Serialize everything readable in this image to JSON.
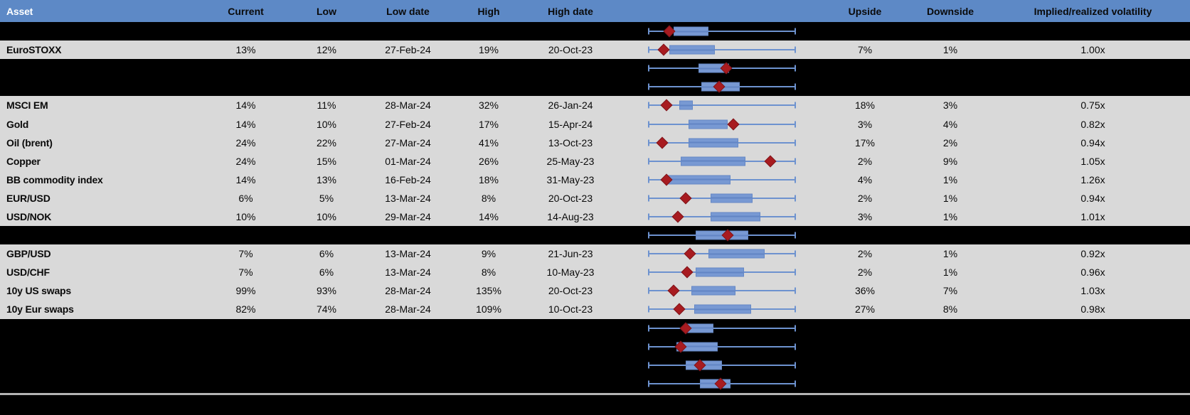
{
  "table": {
    "columns": [
      "Asset",
      "Current",
      "Low",
      "Low date",
      "High",
      "High date",
      "",
      "Upside",
      "Downside",
      "Implied/realized volatility"
    ],
    "rows": [
      {
        "hidden": true,
        "asset": "",
        "current": "",
        "low": "",
        "low_date": "",
        "high": "",
        "high_date": "",
        "upside": "",
        "downside": "",
        "impl_real_vol": ""
      },
      {
        "hidden": false,
        "asset": "EuroSTOXX",
        "current": "13%",
        "low": "12%",
        "low_date": "27-Feb-24",
        "high": "19%",
        "high_date": "20-Oct-23",
        "upside": "7%",
        "downside": "1%",
        "impl_real_vol": "1.00x"
      },
      {
        "hidden": true,
        "asset": "",
        "current": "",
        "low": "",
        "low_date": "",
        "high": "",
        "high_date": "",
        "upside": "",
        "downside": "",
        "impl_real_vol": ""
      },
      {
        "hidden": true,
        "asset": "",
        "current": "",
        "low": "",
        "low_date": "",
        "high": "",
        "high_date": "",
        "upside": "",
        "downside": "",
        "impl_real_vol": ""
      },
      {
        "hidden": false,
        "asset": "MSCI EM",
        "current": "14%",
        "low": "11%",
        "low_date": "28-Mar-24",
        "high": "32%",
        "high_date": "26-Jan-24",
        "upside": "18%",
        "downside": "3%",
        "impl_real_vol": "0.75x"
      },
      {
        "hidden": false,
        "asset": "Gold",
        "current": "14%",
        "low": "10%",
        "low_date": "27-Feb-24",
        "high": "17%",
        "high_date": "15-Apr-24",
        "upside": "3%",
        "downside": "4%",
        "impl_real_vol": "0.82x"
      },
      {
        "hidden": false,
        "asset": "Oil (brent)",
        "current": "24%",
        "low": "22%",
        "low_date": "27-Mar-24",
        "high": "41%",
        "high_date": "13-Oct-23",
        "upside": "17%",
        "downside": "2%",
        "impl_real_vol": "0.94x"
      },
      {
        "hidden": false,
        "asset": "Copper",
        "current": "24%",
        "low": "15%",
        "low_date": "01-Mar-24",
        "high": "26%",
        "high_date": "25-May-23",
        "upside": "2%",
        "downside": "9%",
        "impl_real_vol": "1.05x"
      },
      {
        "hidden": false,
        "asset": "BB commodity index",
        "current": "14%",
        "low": "13%",
        "low_date": "16-Feb-24",
        "high": "18%",
        "high_date": "31-May-23",
        "upside": "4%",
        "downside": "1%",
        "impl_real_vol": "1.26x"
      },
      {
        "hidden": false,
        "asset": "EUR/USD",
        "current": "6%",
        "low": "5%",
        "low_date": "13-Mar-24",
        "high": "8%",
        "high_date": "20-Oct-23",
        "upside": "2%",
        "downside": "1%",
        "impl_real_vol": "0.94x"
      },
      {
        "hidden": false,
        "asset": "USD/NOK",
        "current": "10%",
        "low": "10%",
        "low_date": "29-Mar-24",
        "high": "14%",
        "high_date": "14-Aug-23",
        "upside": "3%",
        "downside": "1%",
        "impl_real_vol": "1.01x"
      },
      {
        "hidden": true,
        "asset": "",
        "current": "",
        "low": "",
        "low_date": "",
        "high": "",
        "high_date": "",
        "upside": "",
        "downside": "",
        "impl_real_vol": ""
      },
      {
        "hidden": false,
        "asset": "GBP/USD",
        "current": "7%",
        "low": "6%",
        "low_date": "13-Mar-24",
        "high": "9%",
        "high_date": "21-Jun-23",
        "upside": "2%",
        "downside": "1%",
        "impl_real_vol": "0.92x"
      },
      {
        "hidden": false,
        "asset": "USD/CHF",
        "current": "7%",
        "low": "6%",
        "low_date": "13-Mar-24",
        "high": "8%",
        "high_date": "10-May-23",
        "upside": "2%",
        "downside": "1%",
        "impl_real_vol": "0.96x"
      },
      {
        "hidden": false,
        "asset": "10y US swaps",
        "current": "99%",
        "low": "93%",
        "low_date": "28-Mar-24",
        "high": "135%",
        "high_date": "20-Oct-23",
        "upside": "36%",
        "downside": "7%",
        "impl_real_vol": "1.03x"
      },
      {
        "hidden": false,
        "asset": "10y Eur swaps",
        "current": "82%",
        "low": "74%",
        "low_date": "28-Mar-24",
        "high": "109%",
        "high_date": "10-Oct-23",
        "upside": "27%",
        "downside": "8%",
        "impl_real_vol": "0.98x"
      },
      {
        "hidden": true,
        "asset": "",
        "current": "",
        "low": "",
        "low_date": "",
        "high": "",
        "high_date": "",
        "upside": "",
        "downside": "",
        "impl_real_vol": ""
      },
      {
        "hidden": true,
        "asset": "",
        "current": "",
        "low": "",
        "low_date": "",
        "high": "",
        "high_date": "",
        "upside": "",
        "downside": "",
        "impl_real_vol": ""
      },
      {
        "hidden": true,
        "asset": "",
        "current": "",
        "low": "",
        "low_date": "",
        "high": "",
        "high_date": "",
        "upside": "",
        "downside": "",
        "impl_real_vol": ""
      },
      {
        "hidden": true,
        "asset": "",
        "current": "",
        "low": "",
        "low_date": "",
        "high": "",
        "high_date": "",
        "upside": "",
        "downside": "",
        "impl_real_vol": ""
      }
    ]
  },
  "chart_data": {
    "type": "boxplot",
    "orientation": "horizontal",
    "x_axis_note": "each row is a min-max whisker spanning the full range (0 = period low, 1 = period high); box = inner range, diamond marker = current level (normalized)",
    "whisker": [
      0,
      1
    ],
    "series": [
      {
        "label": "",
        "box": [
          0.17,
          0.41
        ],
        "marker": 0.14
      },
      {
        "label": "EuroSTOXX",
        "box": [
          0.14,
          0.45
        ],
        "marker": 0.1
      },
      {
        "label": "",
        "box": [
          0.34,
          0.55
        ],
        "marker": 0.53
      },
      {
        "label": "",
        "box": [
          0.36,
          0.62
        ],
        "marker": 0.48
      },
      {
        "label": "MSCI EM",
        "box": [
          0.21,
          0.3
        ],
        "marker": 0.12
      },
      {
        "label": "Gold",
        "box": [
          0.27,
          0.54
        ],
        "marker": 0.58
      },
      {
        "label": "Oil (brent)",
        "box": [
          0.27,
          0.61
        ],
        "marker": 0.09
      },
      {
        "label": "Copper",
        "box": [
          0.22,
          0.66
        ],
        "marker": 0.83
      },
      {
        "label": "BB commodity index",
        "box": [
          0.12,
          0.56
        ],
        "marker": 0.12
      },
      {
        "label": "EUR/USD",
        "box": [
          0.42,
          0.71
        ],
        "marker": 0.25
      },
      {
        "label": "USD/NOK",
        "box": [
          0.42,
          0.76
        ],
        "marker": 0.2
      },
      {
        "label": "",
        "box": [
          0.32,
          0.68
        ],
        "marker": 0.54
      },
      {
        "label": "GBP/USD",
        "box": [
          0.41,
          0.79
        ],
        "marker": 0.28
      },
      {
        "label": "USD/CHF",
        "box": [
          0.32,
          0.65
        ],
        "marker": 0.26
      },
      {
        "label": "10y US swaps",
        "box": [
          0.29,
          0.59
        ],
        "marker": 0.17
      },
      {
        "label": "10y Eur swaps",
        "box": [
          0.31,
          0.7
        ],
        "marker": 0.21
      },
      {
        "label": "",
        "box": [
          0.26,
          0.44
        ],
        "marker": 0.25
      },
      {
        "label": "",
        "box": [
          0.19,
          0.47
        ],
        "marker": 0.22
      },
      {
        "label": "",
        "box": [
          0.25,
          0.5
        ],
        "marker": 0.35
      },
      {
        "label": "",
        "box": [
          0.35,
          0.56
        ],
        "marker": 0.49
      }
    ],
    "colors": {
      "header_blue": "#5d89c6",
      "row_gray": "#d9d9d9",
      "row_black": "#000000",
      "box_fill": "#7899d3",
      "box_border": "#6588c5",
      "whisker_blue": "#6d92cf",
      "marker_red": "#a81b20",
      "separator_gray": "#b3b3b3",
      "header_text": "#ffffff"
    }
  }
}
